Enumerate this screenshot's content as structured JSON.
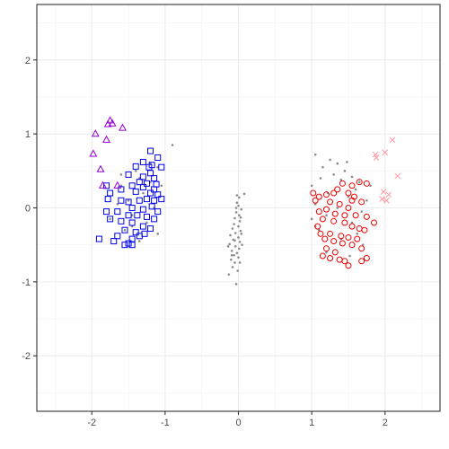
{
  "chart_data": {
    "type": "scatter",
    "title": "",
    "xlabel": "",
    "ylabel": "",
    "xlim": [
      -2.75,
      2.75
    ],
    "ylim": [
      -2.75,
      2.75
    ],
    "x_ticks": [
      "-2",
      "-1",
      "0",
      "1",
      "2"
    ],
    "y_ticks": [
      "-2",
      "-1",
      "0",
      "1",
      "2"
    ],
    "grid": true,
    "legend": "none",
    "series": [
      {
        "marker": "dot",
        "color": "#8c8c8c",
        "points": [
          [
            -0.02,
            0.17
          ],
          [
            0.01,
            0.14
          ],
          [
            0.08,
            0.19
          ],
          [
            -0.02,
            0.07
          ],
          [
            0.0,
            0.03
          ],
          [
            0.04,
            -0.02
          ],
          [
            -0.03,
            -0.06
          ],
          [
            0.01,
            -0.1
          ],
          [
            -0.05,
            -0.14
          ],
          [
            0.02,
            -0.18
          ],
          [
            -0.06,
            -0.22
          ],
          [
            0.0,
            -0.25
          ],
          [
            -0.08,
            -0.28
          ],
          [
            0.03,
            -0.31
          ],
          [
            -0.04,
            -0.34
          ],
          [
            -0.11,
            -0.37
          ],
          [
            0.0,
            -0.4
          ],
          [
            -0.07,
            -0.43
          ],
          [
            0.02,
            -0.46
          ],
          [
            -0.12,
            -0.49
          ],
          [
            -0.04,
            -0.52
          ],
          [
            0.01,
            -0.55
          ],
          [
            -0.09,
            -0.58
          ],
          [
            -0.02,
            -0.61
          ],
          [
            -0.06,
            -0.64
          ],
          [
            0.0,
            -0.67
          ],
          [
            -0.1,
            -0.7
          ],
          [
            -0.05,
            -0.74
          ],
          [
            -0.08,
            -0.8
          ],
          [
            -0.03,
            -1.03
          ],
          [
            -0.13,
            -0.9
          ],
          [
            0.05,
            -0.5
          ],
          [
            -0.01,
            -0.85
          ],
          [
            0.04,
            -0.35
          ],
          [
            -0.14,
            -0.52
          ],
          [
            -0.09,
            -0.64
          ],
          [
            0.02,
            -0.74
          ],
          [
            -0.05,
            -0.44
          ],
          [
            0.03,
            -0.13
          ],
          [
            -0.03,
            0.0
          ],
          [
            1.05,
            0.72
          ],
          [
            1.25,
            0.65
          ],
          [
            1.35,
            0.6
          ],
          [
            1.15,
            0.55
          ],
          [
            1.45,
            0.5
          ],
          [
            1.3,
            0.45
          ],
          [
            1.55,
            0.42
          ],
          [
            1.12,
            0.4
          ],
          [
            1.4,
            0.38
          ],
          [
            1.65,
            0.35
          ],
          [
            1.0,
            0.3
          ],
          [
            1.6,
            0.25
          ],
          [
            1.22,
            0.2
          ],
          [
            1.5,
            0.15
          ],
          [
            1.75,
            0.1
          ],
          [
            1.05,
            0.05
          ],
          [
            1.35,
            0.0
          ],
          [
            1.68,
            -0.05
          ],
          [
            1.2,
            -0.1
          ],
          [
            1.0,
            -0.15
          ],
          [
            1.55,
            -0.2
          ],
          [
            1.1,
            -0.3
          ],
          [
            1.4,
            -0.42
          ],
          [
            1.7,
            -0.5
          ],
          [
            1.2,
            -0.6
          ],
          [
            1.52,
            -0.65
          ],
          [
            1.05,
            -0.25
          ],
          [
            1.8,
            0.3
          ],
          [
            1.48,
            0.62
          ],
          [
            1.62,
            -0.35
          ],
          [
            -1.4,
            0.5
          ],
          [
            -1.2,
            0.6
          ],
          [
            -1.1,
            0.55
          ],
          [
            -1.35,
            0.4
          ],
          [
            -1.6,
            0.3
          ],
          [
            -1.3,
            0.2
          ],
          [
            -1.5,
            0.1
          ],
          [
            -1.15,
            0.0
          ],
          [
            -1.45,
            -0.1
          ],
          [
            -1.25,
            -0.2
          ],
          [
            -1.55,
            -0.3
          ],
          [
            -1.05,
            0.3
          ],
          [
            -0.9,
            0.85
          ],
          [
            -1.75,
            -0.15
          ],
          [
            -1.35,
            -0.45
          ],
          [
            -1.6,
            0.45
          ],
          [
            -1.2,
            0.35
          ],
          [
            -1.45,
            -0.25
          ],
          [
            -1.65,
            0.05
          ],
          [
            -1.1,
            -0.35
          ]
        ]
      },
      {
        "marker": "square",
        "color": "#0000ee",
        "points": [
          [
            -1.2,
            0.77
          ],
          [
            -1.1,
            0.68
          ],
          [
            -1.3,
            0.62
          ],
          [
            -1.18,
            0.58
          ],
          [
            -1.4,
            0.56
          ],
          [
            -1.22,
            0.55
          ],
          [
            -1.05,
            0.55
          ],
          [
            -1.5,
            0.45
          ],
          [
            -1.3,
            0.42
          ],
          [
            -1.15,
            0.4
          ],
          [
            -1.35,
            0.35
          ],
          [
            -1.25,
            0.33
          ],
          [
            -1.12,
            0.32
          ],
          [
            -1.45,
            0.3
          ],
          [
            -1.3,
            0.28
          ],
          [
            -1.6,
            0.25
          ],
          [
            -1.4,
            0.22
          ],
          [
            -1.2,
            0.2
          ],
          [
            -1.1,
            0.18
          ],
          [
            -1.8,
            0.3
          ],
          [
            -1.75,
            0.2
          ],
          [
            -1.78,
            0.12
          ],
          [
            -1.6,
            0.1
          ],
          [
            -1.5,
            0.08
          ],
          [
            -1.35,
            0.1
          ],
          [
            -1.25,
            0.12
          ],
          [
            -1.15,
            0.1
          ],
          [
            -1.05,
            0.12
          ],
          [
            -1.45,
            0.0
          ],
          [
            -1.3,
            -0.02
          ],
          [
            -1.18,
            0.02
          ],
          [
            -1.1,
            -0.05
          ],
          [
            -1.65,
            -0.05
          ],
          [
            -1.8,
            -0.05
          ],
          [
            -1.5,
            -0.1
          ],
          [
            -1.38,
            -0.1
          ],
          [
            -1.25,
            -0.12
          ],
          [
            -1.15,
            -0.15
          ],
          [
            -1.75,
            -0.15
          ],
          [
            -1.6,
            -0.18
          ],
          [
            -1.45,
            -0.2
          ],
          [
            -1.3,
            -0.25
          ],
          [
            -1.2,
            -0.28
          ],
          [
            -1.55,
            -0.3
          ],
          [
            -1.4,
            -0.33
          ],
          [
            -1.28,
            -0.35
          ],
          [
            -1.65,
            -0.38
          ],
          [
            -1.45,
            -0.42
          ],
          [
            -1.7,
            -0.45
          ],
          [
            -1.9,
            -0.42
          ],
          [
            -1.55,
            -0.5
          ],
          [
            -1.45,
            -0.5
          ],
          [
            -1.5,
            -0.48
          ],
          [
            -1.35,
            -0.38
          ],
          [
            -1.2,
            0.47
          ],
          [
            -1.15,
            0.25
          ]
        ]
      },
      {
        "marker": "triangle",
        "color": "#9400d3",
        "points": [
          [
            -1.75,
            1.18
          ],
          [
            -1.72,
            1.14
          ],
          [
            -1.78,
            1.13
          ],
          [
            -1.95,
            1.0
          ],
          [
            -1.58,
            1.08
          ],
          [
            -1.8,
            0.92
          ],
          [
            -1.98,
            0.73
          ],
          [
            -1.88,
            0.52
          ],
          [
            -1.85,
            0.3
          ],
          [
            -1.65,
            0.3
          ]
        ]
      },
      {
        "marker": "circle",
        "color": "#ee0000",
        "points": [
          [
            1.75,
            0.33
          ],
          [
            1.65,
            0.35
          ],
          [
            1.55,
            0.3
          ],
          [
            1.42,
            0.33
          ],
          [
            1.35,
            0.25
          ],
          [
            1.5,
            0.2
          ],
          [
            1.3,
            0.2
          ],
          [
            1.2,
            0.18
          ],
          [
            1.1,
            0.15
          ],
          [
            1.05,
            0.1
          ],
          [
            1.25,
            0.08
          ],
          [
            1.38,
            0.05
          ],
          [
            1.55,
            0.1
          ],
          [
            1.68,
            0.08
          ],
          [
            1.5,
            0.0
          ],
          [
            1.2,
            -0.02
          ],
          [
            1.1,
            -0.05
          ],
          [
            1.32,
            -0.08
          ],
          [
            1.45,
            -0.1
          ],
          [
            1.6,
            -0.1
          ],
          [
            1.75,
            -0.12
          ],
          [
            1.85,
            -0.2
          ],
          [
            1.15,
            -0.15
          ],
          [
            1.3,
            -0.18
          ],
          [
            1.45,
            -0.2
          ],
          [
            1.55,
            -0.25
          ],
          [
            1.65,
            -0.28
          ],
          [
            1.72,
            -0.3
          ],
          [
            1.12,
            -0.35
          ],
          [
            1.25,
            -0.35
          ],
          [
            1.4,
            -0.38
          ],
          [
            1.5,
            -0.4
          ],
          [
            1.62,
            -0.42
          ],
          [
            1.18,
            -0.42
          ],
          [
            1.3,
            -0.45
          ],
          [
            1.42,
            -0.48
          ],
          [
            1.55,
            -0.5
          ],
          [
            1.68,
            -0.55
          ],
          [
            1.75,
            -0.68
          ],
          [
            1.2,
            -0.55
          ],
          [
            1.32,
            -0.6
          ],
          [
            1.38,
            -0.7
          ],
          [
            1.45,
            -0.72
          ],
          [
            1.5,
            -0.78
          ],
          [
            1.68,
            -0.72
          ],
          [
            1.15,
            -0.65
          ],
          [
            1.25,
            -0.68
          ],
          [
            1.02,
            0.2
          ],
          [
            1.08,
            -0.25
          ],
          [
            1.58,
            0.15
          ]
        ]
      },
      {
        "marker": "cross",
        "color": "#ff9aa2",
        "points": [
          [
            2.1,
            0.92
          ],
          [
            2.0,
            0.75
          ],
          [
            1.87,
            0.72
          ],
          [
            1.88,
            0.68
          ],
          [
            2.17,
            0.43
          ],
          [
            1.98,
            0.22
          ],
          [
            2.05,
            0.18
          ],
          [
            1.96,
            0.12
          ],
          [
            2.02,
            0.1
          ]
        ]
      }
    ]
  }
}
